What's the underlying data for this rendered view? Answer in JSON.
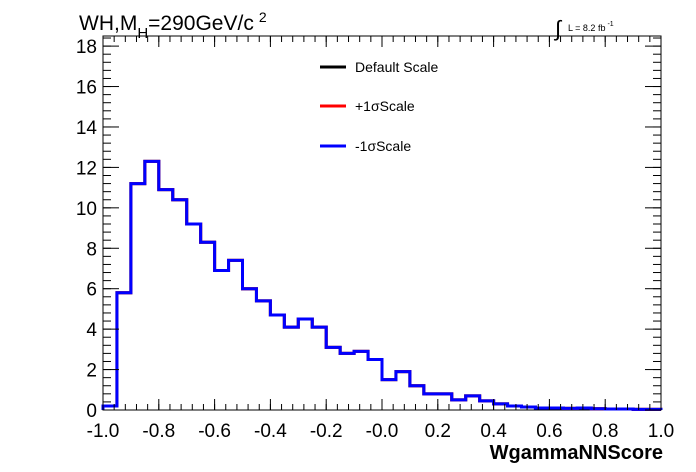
{
  "title": {
    "main": "WH,M",
    "sub": "H",
    "rest": "=290GeV/c",
    "sup": "2"
  },
  "lumi": {
    "integral": "∫",
    "text": "L = 8.2 fb",
    "sup": "-1"
  },
  "chart_data": {
    "type": "line",
    "style": "step-histogram",
    "xlabel": "WgammaNNScore",
    "ylabel": "",
    "xlim": [
      -1.0,
      1.0
    ],
    "ylim": [
      0,
      18.5
    ],
    "x_ticks": [
      "-1.0",
      "-0.8",
      "-0.6",
      "-0.4",
      "-0.2",
      "-0.0",
      "0.2",
      "0.4",
      "0.6",
      "0.8",
      "1.0"
    ],
    "y_ticks": [
      "0",
      "2",
      "4",
      "6",
      "8",
      "10",
      "12",
      "14",
      "16",
      "18"
    ],
    "grid": false,
    "legend_position": "top-center",
    "bin_edges": [
      -1.0,
      -0.95,
      -0.9,
      -0.85,
      -0.8,
      -0.75,
      -0.7,
      -0.65,
      -0.6,
      -0.55,
      -0.5,
      -0.45,
      -0.4,
      -0.35,
      -0.3,
      -0.25,
      -0.2,
      -0.15,
      -0.1,
      -0.05,
      0.0,
      0.05,
      0.1,
      0.15,
      0.2,
      0.25,
      0.3,
      0.35,
      0.4,
      0.45,
      0.5,
      0.55,
      0.6,
      0.65,
      0.7,
      0.75,
      0.8,
      0.85,
      0.9,
      0.95,
      1.0
    ],
    "series": [
      {
        "name": "Default Scale",
        "color": "#000000",
        "values": [
          0.2,
          5.8,
          11.2,
          12.3,
          10.9,
          10.4,
          9.2,
          8.3,
          6.9,
          7.4,
          6.0,
          5.4,
          4.7,
          4.1,
          4.5,
          4.1,
          3.1,
          2.8,
          2.9,
          2.5,
          1.5,
          1.9,
          1.2,
          0.8,
          0.8,
          0.5,
          0.7,
          0.45,
          0.3,
          0.2,
          0.15,
          0.1,
          0.1,
          0.08,
          0.1,
          0.06,
          0.05,
          0.05,
          0.03,
          0.03
        ]
      },
      {
        "name": "+1σScale",
        "color": "#ff0000",
        "values": [
          0.2,
          5.8,
          11.2,
          12.3,
          10.9,
          10.4,
          9.2,
          8.3,
          6.9,
          7.4,
          6.0,
          5.4,
          4.7,
          4.1,
          4.5,
          4.1,
          3.1,
          2.8,
          2.9,
          2.5,
          1.5,
          1.9,
          1.2,
          0.8,
          0.8,
          0.5,
          0.7,
          0.45,
          0.3,
          0.2,
          0.15,
          0.1,
          0.1,
          0.08,
          0.1,
          0.06,
          0.05,
          0.05,
          0.03,
          0.03
        ]
      },
      {
        "name": "-1σScale",
        "color": "#0000ff",
        "values": [
          0.2,
          5.8,
          11.2,
          12.3,
          10.9,
          10.4,
          9.2,
          8.3,
          6.9,
          7.4,
          6.0,
          5.4,
          4.7,
          4.1,
          4.5,
          4.1,
          3.1,
          2.8,
          2.9,
          2.5,
          1.5,
          1.9,
          1.2,
          0.8,
          0.8,
          0.5,
          0.7,
          0.45,
          0.3,
          0.2,
          0.15,
          0.1,
          0.1,
          0.08,
          0.1,
          0.06,
          0.05,
          0.05,
          0.03,
          0.03
        ]
      }
    ]
  }
}
